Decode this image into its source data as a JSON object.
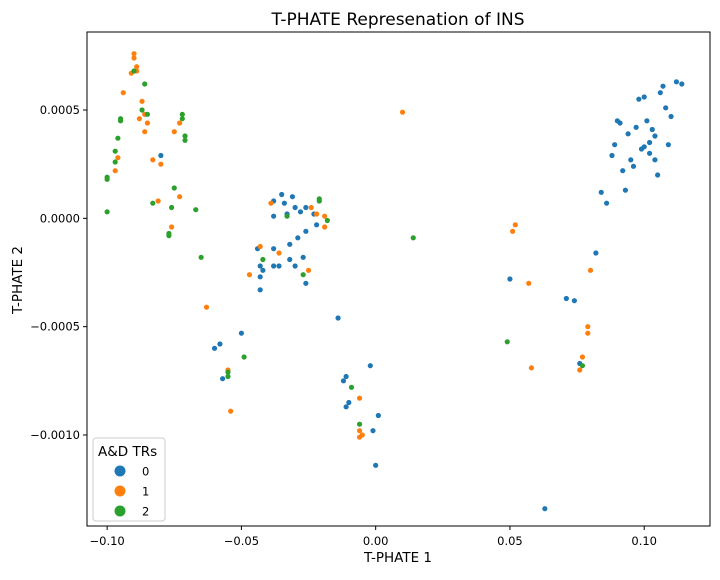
{
  "chart_data": {
    "type": "scatter",
    "title": "T-PHATE Represenation of INS",
    "xlabel": "T-PHATE 1",
    "ylabel": "T-PHATE 2",
    "xlim": [
      -0.1075,
      0.1245
    ],
    "ylim": [
      -0.00142,
      0.00086
    ],
    "xticks": [
      {
        "value": -0.1,
        "label": "−0.10"
      },
      {
        "value": -0.05,
        "label": "−0.05"
      },
      {
        "value": 0.0,
        "label": "0.00"
      },
      {
        "value": 0.05,
        "label": "0.05"
      },
      {
        "value": 0.1,
        "label": "0.10"
      }
    ],
    "yticks": [
      {
        "value": -0.001,
        "label": "−0.0010"
      },
      {
        "value": -0.0005,
        "label": "−0.0005"
      },
      {
        "value": 0.0,
        "label": "0.0000"
      },
      {
        "value": 0.0005,
        "label": "0.0005"
      }
    ],
    "grid": false,
    "legend": {
      "title": "A&D TRs",
      "placement": "lower-left"
    },
    "series": [
      {
        "name": "0",
        "color": "#1f77b4",
        "points": [
          [
            0.106,
            0.00058
          ],
          [
            0.108,
            0.00051
          ],
          [
            0.101,
            0.00045
          ],
          [
            0.11,
            0.00047
          ],
          [
            0.098,
            0.00055
          ],
          [
            0.103,
            0.00041
          ],
          [
            0.097,
            0.00042
          ],
          [
            0.099,
            0.00032
          ],
          [
            0.104,
            0.00038
          ],
          [
            0.102,
            0.0003
          ],
          [
            0.094,
            0.00039
          ],
          [
            0.091,
            0.00044
          ],
          [
            0.089,
            0.00034
          ],
          [
            0.104,
            0.00027
          ],
          [
            0.1,
            0.00033
          ],
          [
            0.095,
            0.00027
          ],
          [
            0.088,
            0.00029
          ],
          [
            0.092,
            0.00022
          ],
          [
            0.096,
            0.00024
          ],
          [
            0.105,
            0.0002
          ],
          [
            0.084,
            0.00012
          ],
          [
            0.086,
            7e-05
          ],
          [
            0.093,
            0.00013
          ],
          [
            0.102,
            0.00035
          ],
          [
            0.109,
            0.00034
          ],
          [
            0.112,
            0.00063
          ],
          [
            0.114,
            0.00062
          ],
          [
            0.107,
            0.00061
          ],
          [
            0.1,
            0.00056
          ],
          [
            0.09,
            0.00045
          ],
          [
            0.082,
            -0.00016
          ],
          [
            0.071,
            -0.00037
          ],
          [
            0.074,
            -0.00038
          ],
          [
            0.076,
            -0.00067
          ],
          [
            0.05,
            -0.00028
          ],
          [
            0.063,
            -0.00134
          ],
          [
            0.001,
            -0.00091
          ],
          [
            -0.002,
            -0.00068
          ],
          [
            -0.001,
            -0.00098
          ],
          [
            0.0,
            -0.00114
          ],
          [
            -0.01,
            -0.00085
          ],
          [
            -0.011,
            -0.00073
          ],
          [
            -0.012,
            -0.00075
          ],
          [
            -0.011,
            -0.00087
          ],
          [
            -0.014,
            -0.00046
          ],
          [
            -0.035,
            0.00011
          ],
          [
            -0.031,
            0.0001
          ],
          [
            -0.038,
            8e-05
          ],
          [
            -0.034,
            7e-05
          ],
          [
            -0.03,
            5e-05
          ],
          [
            -0.026,
            5e-05
          ],
          [
            -0.033,
            2e-05
          ],
          [
            -0.028,
            3e-05
          ],
          [
            -0.038,
            1e-05
          ],
          [
            -0.023,
            2e-05
          ],
          [
            -0.022,
            -3e-05
          ],
          [
            -0.026,
            -6e-05
          ],
          [
            -0.029,
            -9e-05
          ],
          [
            -0.032,
            -0.00012
          ],
          [
            -0.038,
            -0.00014
          ],
          [
            -0.044,
            -0.00014
          ],
          [
            -0.043,
            -0.00022
          ],
          [
            -0.042,
            -0.00024
          ],
          [
            -0.038,
            -0.00022
          ],
          [
            -0.036,
            -0.00022
          ],
          [
            -0.032,
            -0.00019
          ],
          [
            -0.027,
            -0.00018
          ],
          [
            -0.043,
            -0.00027
          ],
          [
            -0.03,
            -0.00022
          ],
          [
            -0.026,
            -0.0003
          ],
          [
            -0.043,
            -0.00033
          ],
          [
            -0.05,
            -0.00053
          ],
          [
            -0.06,
            -0.0006
          ],
          [
            -0.058,
            -0.00058
          ],
          [
            -0.057,
            -0.00074
          ],
          [
            -0.08,
            0.00029
          ]
        ]
      },
      {
        "name": "1",
        "color": "#ff7f0e",
        "points": [
          [
            -0.09,
            0.00076
          ],
          [
            -0.09,
            0.00074
          ],
          [
            -0.089,
            0.0007
          ],
          [
            -0.089,
            0.00068
          ],
          [
            -0.091,
            0.00067
          ],
          [
            -0.094,
            0.00058
          ],
          [
            -0.087,
            0.00054
          ],
          [
            -0.086,
            0.00048
          ],
          [
            -0.085,
            0.00044
          ],
          [
            -0.088,
            0.00046
          ],
          [
            -0.086,
            0.0004
          ],
          [
            -0.096,
            0.00028
          ],
          [
            -0.097,
            0.00022
          ],
          [
            -0.083,
            0.00027
          ],
          [
            -0.08,
            0.00025
          ],
          [
            -0.073,
            0.00044
          ],
          [
            -0.075,
            0.0004
          ],
          [
            -0.073,
            0.0001
          ],
          [
            -0.081,
            8e-05
          ],
          [
            -0.076,
            -4e-05
          ],
          [
            -0.063,
            -0.00041
          ],
          [
            -0.055,
            -0.0007
          ],
          [
            -0.054,
            -0.00089
          ],
          [
            -0.047,
            -0.00026
          ],
          [
            -0.043,
            -0.00013
          ],
          [
            -0.039,
            7e-05
          ],
          [
            -0.036,
            -0.00016
          ],
          [
            -0.024,
            5e-05
          ],
          [
            -0.022,
            2e-05
          ],
          [
            -0.019,
            1e-05
          ],
          [
            -0.019,
            -4e-05
          ],
          [
            -0.025,
            -0.00024
          ],
          [
            -0.006,
            -0.00083
          ],
          [
            -0.006,
            -0.00098
          ],
          [
            -0.005,
            -0.001
          ],
          [
            -0.006,
            -0.00101
          ],
          [
            0.01,
            0.00049
          ],
          [
            0.052,
            -3e-05
          ],
          [
            0.051,
            -6e-05
          ],
          [
            0.057,
            -0.0003
          ],
          [
            0.058,
            -0.00069
          ],
          [
            0.076,
            -0.0007
          ],
          [
            0.077,
            -0.00064
          ],
          [
            0.079,
            -0.00053
          ],
          [
            0.079,
            -0.0005
          ],
          [
            0.08,
            -0.00024
          ]
        ]
      },
      {
        "name": "2",
        "color": "#2ca02c",
        "points": [
          [
            -0.086,
            0.00062
          ],
          [
            -0.09,
            0.00068
          ],
          [
            -0.087,
            0.0005
          ],
          [
            -0.085,
            0.00048
          ],
          [
            -0.095,
            0.00046
          ],
          [
            -0.095,
            0.00045
          ],
          [
            -0.096,
            0.00037
          ],
          [
            -0.097,
            0.00031
          ],
          [
            -0.097,
            0.00026
          ],
          [
            -0.1,
            0.00019
          ],
          [
            -0.1,
            0.00018
          ],
          [
            -0.1,
            3e-05
          ],
          [
            -0.083,
            7e-05
          ],
          [
            -0.071,
            0.00038
          ],
          [
            -0.071,
            0.00036
          ],
          [
            -0.072,
            0.00048
          ],
          [
            -0.072,
            0.00046
          ],
          [
            -0.075,
            0.00014
          ],
          [
            -0.076,
            5e-05
          ],
          [
            -0.077,
            -8e-05
          ],
          [
            -0.077,
            -7e-05
          ],
          [
            -0.067,
            4e-05
          ],
          [
            -0.065,
            -0.00018
          ],
          [
            -0.055,
            -0.00071
          ],
          [
            -0.055,
            -0.00073
          ],
          [
            -0.049,
            -0.00064
          ],
          [
            -0.042,
            -0.00019
          ],
          [
            -0.033,
            1e-05
          ],
          [
            -0.027,
            -0.00026
          ],
          [
            -0.021,
            9e-05
          ],
          [
            -0.021,
            8e-05
          ],
          [
            -0.018,
            -1e-05
          ],
          [
            -0.009,
            -0.00078
          ],
          [
            -0.006,
            -0.00095
          ],
          [
            0.014,
            -9e-05
          ],
          [
            0.049,
            -0.00057
          ],
          [
            0.077,
            -0.00068
          ]
        ]
      }
    ]
  }
}
